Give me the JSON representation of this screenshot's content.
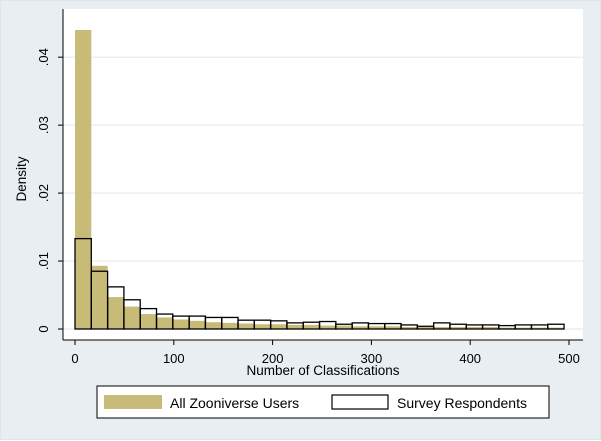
{
  "chart_data": {
    "type": "bar",
    "title": "",
    "xlabel": "Number of Classifications",
    "ylabel": "Density",
    "xlim": [
      0,
      500
    ],
    "ylim": [
      0,
      0.045
    ],
    "grid": true,
    "legend_position": "bottom",
    "x_ticks": [
      0,
      100,
      200,
      300,
      400,
      500
    ],
    "x_tick_labels": [
      "0",
      "100",
      "200",
      "300",
      "400",
      "500"
    ],
    "y_ticks": [
      0,
      0.01,
      0.02,
      0.03,
      0.04
    ],
    "y_tick_labels": [
      "0",
      ".01",
      ".02",
      ".03",
      ".04"
    ],
    "bin_width": 16.5,
    "series": [
      {
        "name": "All Zooniverse Users",
        "style": "filled",
        "color": "#c8bb78",
        "bin_starts": [
          0,
          16.5,
          33,
          49.5,
          66,
          82.5,
          99,
          115.5,
          132,
          148.5,
          165,
          181.5,
          198,
          214.5,
          231,
          247.5,
          264,
          280.5,
          297,
          313.5,
          330,
          346.5,
          363,
          379.5,
          396,
          412.5,
          429,
          445.5,
          462,
          478.5
        ],
        "values": [
          0.044,
          0.0093,
          0.0047,
          0.0033,
          0.0022,
          0.0017,
          0.0014,
          0.0012,
          0.001,
          0.0009,
          0.0008,
          0.0007,
          0.0007,
          0.0006,
          0.0006,
          0.0005,
          0.0005,
          0.0004,
          0.0004,
          0.0004,
          0.0003,
          0.0003,
          0.0003,
          0.0003,
          0.0003,
          0.0003,
          0.0002,
          0.0002,
          0.0002,
          0.0002
        ]
      },
      {
        "name": "Survey Respondents",
        "style": "outline",
        "color": "#000000",
        "bin_starts": [
          0,
          16.5,
          33,
          49.5,
          66,
          82.5,
          99,
          115.5,
          132,
          148.5,
          165,
          181.5,
          198,
          214.5,
          231,
          247.5,
          264,
          280.5,
          297,
          313.5,
          330,
          346.5,
          363,
          379.5,
          396,
          412.5,
          429,
          445.5,
          462,
          478.5
        ],
        "values": [
          0.0133,
          0.0085,
          0.0062,
          0.0043,
          0.003,
          0.0022,
          0.0019,
          0.0019,
          0.0017,
          0.0017,
          0.0013,
          0.0013,
          0.0012,
          0.0009,
          0.001,
          0.0011,
          0.0007,
          0.0009,
          0.0008,
          0.0008,
          0.0006,
          0.0004,
          0.0009,
          0.0007,
          0.0006,
          0.0006,
          0.0005,
          0.0006,
          0.0006,
          0.0007
        ]
      }
    ],
    "extra_filled_last_bin": {
      "comment_free_value_for_series": "All Zooniverse Users",
      "values_tail": [
        0.0002
      ]
    }
  }
}
